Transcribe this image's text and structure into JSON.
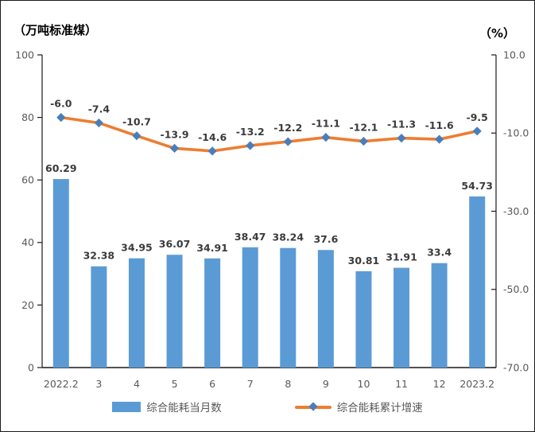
{
  "chart_data": {
    "type": "bar+line",
    "categories": [
      "2022.2",
      "3",
      "4",
      "5",
      "6",
      "7",
      "8",
      "9",
      "10",
      "11",
      "12",
      "2023.2"
    ],
    "series": [
      {
        "name": "综合能耗当月数",
        "type": "bar",
        "axis": "left",
        "values": [
          60.29,
          32.38,
          34.95,
          36.07,
          34.91,
          38.47,
          38.24,
          37.6,
          30.81,
          31.91,
          33.4,
          54.73
        ],
        "labels": [
          "60.29",
          "32.38",
          "34.95",
          "36.07",
          "34.91",
          "38.47",
          "38.24",
          "37.6",
          "30.81",
          "31.91",
          "33.4",
          "54.73"
        ]
      },
      {
        "name": "综合能耗累计增速",
        "type": "line",
        "axis": "right",
        "values": [
          -6.0,
          -7.4,
          -10.7,
          -13.9,
          -14.6,
          -13.2,
          -12.2,
          -11.1,
          -12.1,
          -11.3,
          -11.6,
          -9.5
        ],
        "labels": [
          "-6.0",
          "-7.4",
          "-10.7",
          "-13.9",
          "-14.6",
          "-13.2",
          "-12.2",
          "-11.1",
          "-12.1",
          "-11.3",
          "-11.6",
          "-9.5"
        ]
      }
    ],
    "left_axis": {
      "title": "（万吨标准煤）",
      "ticks": [
        "100",
        "80",
        "60",
        "40",
        "20",
        "0"
      ],
      "ylim": [
        0,
        100
      ]
    },
    "right_axis": {
      "title": "（%）",
      "ticks": [
        "10.0",
        "-10.0",
        "-30.0",
        "-50.0",
        "-70.0"
      ],
      "ylim": [
        -70,
        10
      ]
    },
    "grid": false,
    "legend_position": "bottom",
    "colors": {
      "bar": "#5B9BD5",
      "line": "#ED7D31",
      "marker": "#4A7EBB",
      "axis_line": "#1a1a1a",
      "axis_text": "#595959",
      "data_label": "#3b3b3b"
    }
  }
}
